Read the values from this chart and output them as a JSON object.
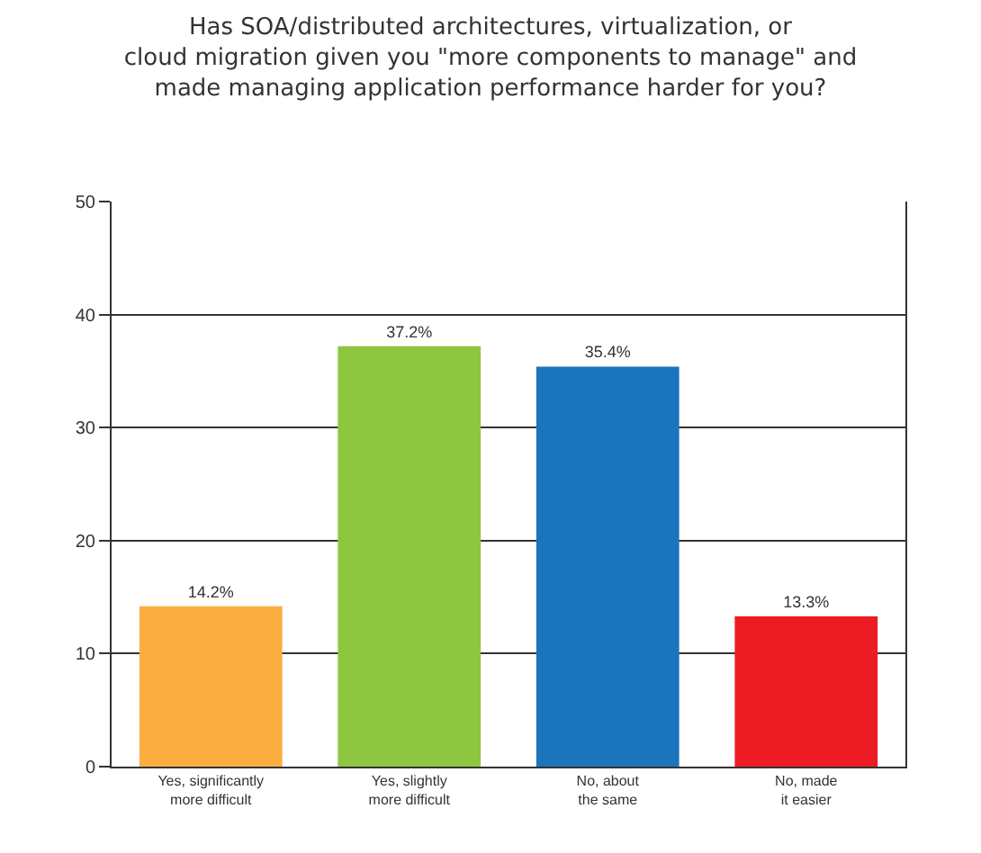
{
  "chart_data": {
    "type": "bar",
    "title": "Has SOA/distributed architectures, virtualization, or cloud migration given you \"more components to manage\" and made managing application performance harder for you?",
    "categories": [
      "Yes, significantly\nmore difficult",
      "Yes, slightly\nmore difficult",
      "No, about\nthe same",
      "No, made\nit easier"
    ],
    "values": [
      14.2,
      37.2,
      35.4,
      13.3
    ],
    "colors": [
      "#fbae3f",
      "#8dc63f",
      "#1b75bc",
      "#ed1c24"
    ],
    "value_labels": [
      "14.2%",
      "37.2%",
      "35.4%",
      "13.3%"
    ],
    "ylim": [
      0,
      50
    ],
    "yticks": [
      0,
      10,
      20,
      30,
      40,
      50
    ],
    "grid": "y"
  }
}
